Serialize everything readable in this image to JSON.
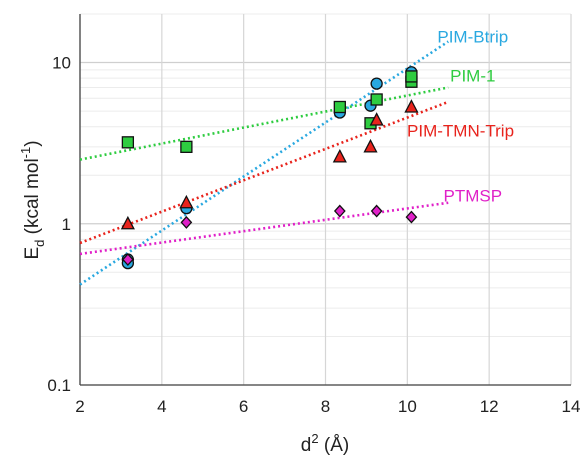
{
  "chart_data": {
    "type": "scatter",
    "title": "",
    "xlabel_base": "d",
    "xlabel_sup": "2",
    "xlabel_unit": " (Å)",
    "ylabel_base": "E",
    "ylabel_sub": "d",
    "ylabel_unit_pre": " (kcal mol",
    "ylabel_sup": "-1",
    "ylabel_unit_post": ")",
    "xlim": [
      2,
      14
    ],
    "ylim": [
      0.1,
      20
    ],
    "yscale": "log",
    "x_ticks": [
      2,
      4,
      6,
      8,
      10,
      12,
      14
    ],
    "x_tick_labels": [
      "2",
      "4",
      "6",
      "8",
      "10",
      "12",
      "14"
    ],
    "y_ticks": [
      0.1,
      1,
      10
    ],
    "y_tick_labels": [
      "0.1",
      "1",
      "10"
    ],
    "grid": true,
    "series": [
      {
        "name": "PIM-Btrip",
        "color": "#29a8e0",
        "marker": "circle",
        "x": [
          3.17,
          3.17,
          4.6,
          8.35,
          9.1,
          9.25,
          10.1
        ],
        "y": [
          0.6,
          0.57,
          1.25,
          4.9,
          5.4,
          7.4,
          8.7
        ],
        "trend": {
          "x": [
            2,
            11
          ],
          "y": [
            0.42,
            13.5
          ]
        }
      },
      {
        "name": "PIM-1",
        "color": "#2ecc40",
        "marker": "square",
        "x": [
          3.17,
          4.6,
          8.35,
          9.1,
          9.25,
          10.1,
          10.1
        ],
        "y": [
          3.2,
          3.0,
          5.3,
          4.2,
          5.9,
          7.6,
          8.2
        ],
        "trend": {
          "x": [
            2,
            11
          ],
          "y": [
            2.5,
            7.0
          ]
        }
      },
      {
        "name": "PIM-TMN-Trip",
        "color": "#e8231c",
        "marker": "triangle",
        "x": [
          3.17,
          4.6,
          8.35,
          9.1,
          9.25,
          10.1
        ],
        "y": [
          1.0,
          1.35,
          2.6,
          3.0,
          4.4,
          5.3
        ],
        "trend": {
          "x": [
            2,
            11
          ],
          "y": [
            0.76,
            5.7
          ]
        }
      },
      {
        "name": "PTMSP",
        "color": "#e020c8",
        "marker": "diamond",
        "x": [
          3.17,
          4.6,
          8.35,
          9.25,
          10.1
        ],
        "y": [
          0.6,
          1.02,
          1.2,
          1.2,
          1.1
        ],
        "trend": {
          "x": [
            2,
            11
          ],
          "y": [
            0.65,
            1.35
          ]
        }
      }
    ],
    "label_positions": [
      {
        "series": "PIM-Btrip",
        "x": 11.6,
        "y": 14.5
      },
      {
        "series": "PIM-1",
        "x": 11.6,
        "y": 8.3
      },
      {
        "series": "PIM-TMN-Trip",
        "x": 11.3,
        "y": 3.8
      },
      {
        "series": "PTMSP",
        "x": 11.6,
        "y": 1.5
      }
    ]
  }
}
